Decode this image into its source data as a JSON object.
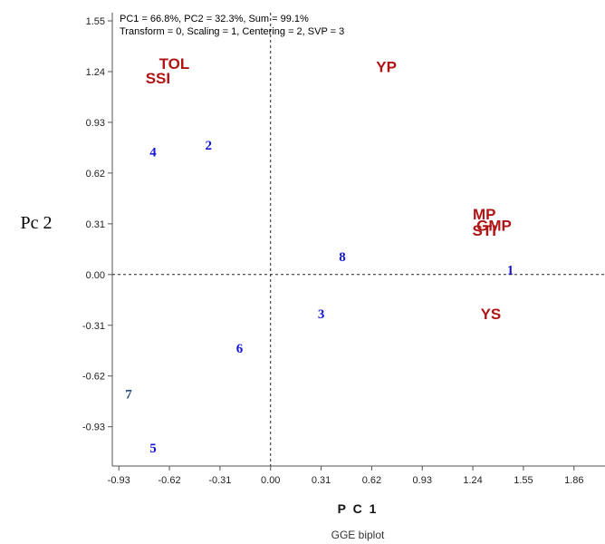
{
  "chart_data": {
    "type": "scatter",
    "title": "GGE biplot",
    "info_line1": "PC1 = 66.8%, PC2 = 32.3%, Sum = 99.1%",
    "info_line2": "Transform = 0, Scaling = 1, Centering = 2, SVP = 3",
    "xlabel": "P C 1",
    "ylabel": "Pc 2",
    "xlim": [
      -0.97,
      2.05
    ],
    "ylim": [
      -1.17,
      1.6
    ],
    "x_ticks": [
      "-0.93",
      "-0.62",
      "-0.31",
      "0.00",
      "0.31",
      "0.62",
      "0.93",
      "1.24",
      "1.55",
      "1.86"
    ],
    "y_ticks": [
      "1.55",
      "1.24",
      "0.93",
      "0.62",
      "0.31",
      "0.00",
      "-0.31",
      "-0.62",
      "-0.93"
    ],
    "genotypes": [
      {
        "label": "1",
        "x": 1.47,
        "y": 0.03
      },
      {
        "label": "2",
        "x": -0.38,
        "y": 0.79
      },
      {
        "label": "3",
        "x": 0.31,
        "y": -0.24
      },
      {
        "label": "4",
        "x": -0.72,
        "y": 0.75
      },
      {
        "label": "5",
        "x": -0.72,
        "y": -1.06
      },
      {
        "label": "6",
        "x": -0.19,
        "y": -0.45
      },
      {
        "label": "7",
        "x": -0.87,
        "y": -0.73
      },
      {
        "label": "8",
        "x": 0.44,
        "y": 0.11
      }
    ],
    "environments": [
      {
        "label": "TOL",
        "x": -0.59,
        "y": 1.29
      },
      {
        "label": "SSI",
        "x": -0.69,
        "y": 1.2
      },
      {
        "label": "YP",
        "x": 0.71,
        "y": 1.27
      },
      {
        "label": "MP",
        "x": 1.31,
        "y": 0.37
      },
      {
        "label": "STI",
        "x": 1.31,
        "y": 0.27
      },
      {
        "label": "GMP",
        "x": 1.37,
        "y": 0.3
      },
      {
        "label": "YS",
        "x": 1.35,
        "y": -0.24
      }
    ],
    "grid": false,
    "reference_lines": "dashed lines at x = 0 and y = 0"
  }
}
